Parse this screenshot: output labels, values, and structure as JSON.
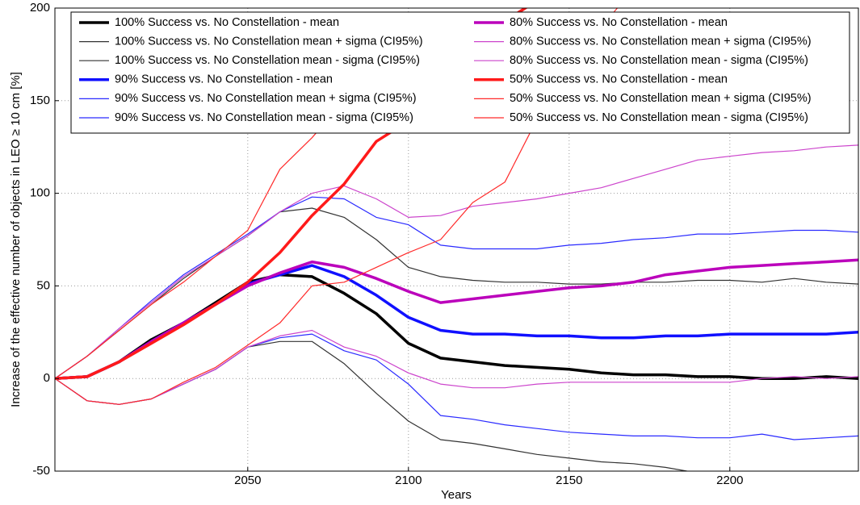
{
  "chart_data": {
    "type": "line",
    "xlabel": "Years",
    "ylabel": "Increase of the effective number of objects in LEO ≥ 10 cm  [%]",
    "x": [
      1990,
      2000,
      2010,
      2020,
      2030,
      2040,
      2050,
      2060,
      2070,
      2080,
      2090,
      2100,
      2110,
      2120,
      2130,
      2140,
      2150,
      2160,
      2170,
      2180,
      2190,
      2200,
      2210,
      2220,
      2230,
      2240
    ],
    "xlim": [
      1990,
      2240
    ],
    "xticks": [
      2050,
      2100,
      2150,
      2200
    ],
    "ylim": [
      -50,
      200
    ],
    "yticks": [
      -50,
      0,
      50,
      100,
      150,
      200
    ],
    "grid": true,
    "legend": "upper center",
    "series": [
      {
        "name": "100% Success vs. No Constellation - mean",
        "color": "#000000",
        "linewidth": 3.5,
        "values": [
          0,
          1,
          9,
          21,
          30,
          41,
          52,
          56,
          55,
          46,
          35,
          19,
          11,
          9,
          7,
          6,
          5,
          3,
          2,
          2,
          1,
          1,
          0,
          0,
          1,
          0
        ]
      },
      {
        "name": "100% Success vs. No Constellation mean + sigma (CI95%)",
        "color": "#333333",
        "linewidth": 1.2,
        "values": [
          0,
          12,
          26,
          40,
          54,
          66,
          77,
          90,
          92,
          87,
          75,
          60,
          55,
          53,
          52,
          52,
          51,
          51,
          52,
          52,
          53,
          53,
          52,
          54,
          52,
          51
        ]
      },
      {
        "name": "100% Success vs. No Constellation mean - sigma (CI95%)",
        "color": "#333333",
        "linewidth": 1.2,
        "values": [
          0,
          -12,
          -14,
          -11,
          -3,
          5,
          17,
          20,
          20,
          8,
          -8,
          -23,
          -33,
          -35,
          -38,
          -41,
          -43,
          -45,
          -46,
          -48,
          -51,
          null,
          null,
          null,
          null,
          null
        ]
      },
      {
        "name": "90% Success vs. No Constellation - mean",
        "color": "#1010ff",
        "linewidth": 3.5,
        "values": [
          0,
          1,
          9,
          20,
          30,
          40,
          51,
          56,
          61,
          55,
          45,
          33,
          26,
          24,
          24,
          23,
          23,
          22,
          22,
          23,
          23,
          24,
          24,
          24,
          24,
          25
        ]
      },
      {
        "name": "90% Success vs. No Constellation mean + sigma (CI95%)",
        "color": "#2a2aff",
        "linewidth": 1.2,
        "values": [
          0,
          12,
          27,
          42,
          56,
          67,
          78,
          90,
          98,
          97,
          87,
          83,
          72,
          70,
          70,
          70,
          72,
          73,
          75,
          76,
          78,
          78,
          79,
          80,
          80,
          79
        ]
      },
      {
        "name": "90% Success vs. No Constellation mean - sigma (CI95%)",
        "color": "#2a2aff",
        "linewidth": 1.2,
        "values": [
          0,
          -12,
          -14,
          -11,
          -3,
          5,
          17,
          22,
          24,
          15,
          10,
          -3,
          -20,
          -22,
          -25,
          -27,
          -29,
          -30,
          -31,
          -31,
          -32,
          -32,
          -30,
          -33,
          -32,
          -31
        ]
      },
      {
        "name": "80% Success vs. No Constellation - mean",
        "color": "#bb00bb",
        "linewidth": 3.5,
        "values": [
          0,
          1,
          9,
          20,
          30,
          40,
          50,
          57,
          63,
          60,
          54,
          47,
          41,
          43,
          45,
          47,
          49,
          50,
          52,
          56,
          58,
          60,
          61,
          62,
          63,
          64
        ]
      },
      {
        "name": "80% Success vs. No Constellation mean + sigma (CI95%)",
        "color": "#cc44cc",
        "linewidth": 1.2,
        "values": [
          0,
          12,
          27,
          41,
          55,
          66,
          77,
          90,
          100,
          104,
          97,
          87,
          88,
          93,
          95,
          97,
          100,
          103,
          108,
          113,
          118,
          120,
          122,
          123,
          125,
          126
        ]
      },
      {
        "name": "80% Success vs. No Constellation mean - sigma (CI95%)",
        "color": "#cc44cc",
        "linewidth": 1.2,
        "values": [
          0,
          -12,
          -14,
          -11,
          -3,
          5,
          17,
          23,
          26,
          17,
          12,
          3,
          -3,
          -5,
          -5,
          -3,
          -2,
          -2,
          -2,
          -2,
          -2,
          -2,
          0,
          1,
          0,
          1
        ]
      },
      {
        "name": "50% Success vs. No Constellation - mean",
        "color": "#ff1a1a",
        "linewidth": 3.5,
        "values": [
          0,
          1,
          9,
          19,
          29,
          40,
          52,
          68,
          88,
          105,
          128,
          139,
          155,
          175,
          193,
          204,
          null,
          null,
          null,
          null,
          null,
          null,
          null,
          null,
          null,
          null
        ]
      },
      {
        "name": "50% Success vs. No Constellation mean + sigma (CI95%)",
        "color": "#ff2a2a",
        "linewidth": 1.2,
        "values": [
          0,
          12,
          26,
          40,
          52,
          66,
          80,
          113,
          130,
          150,
          190,
          null,
          null,
          null,
          null,
          null,
          null,
          null,
          null,
          null,
          null,
          null,
          null,
          null,
          null,
          null
        ]
      },
      {
        "name": "50% Success vs. No Constellation mean - sigma (CI95%)",
        "color": "#ff2a2a",
        "linewidth": 1.2,
        "values": [
          0,
          -12,
          -14,
          -11,
          -2,
          6,
          18,
          30,
          50,
          52,
          60,
          68,
          75,
          95,
          106,
          140,
          165,
          190,
          210,
          null,
          null,
          null,
          null,
          null,
          null,
          null
        ]
      }
    ]
  }
}
